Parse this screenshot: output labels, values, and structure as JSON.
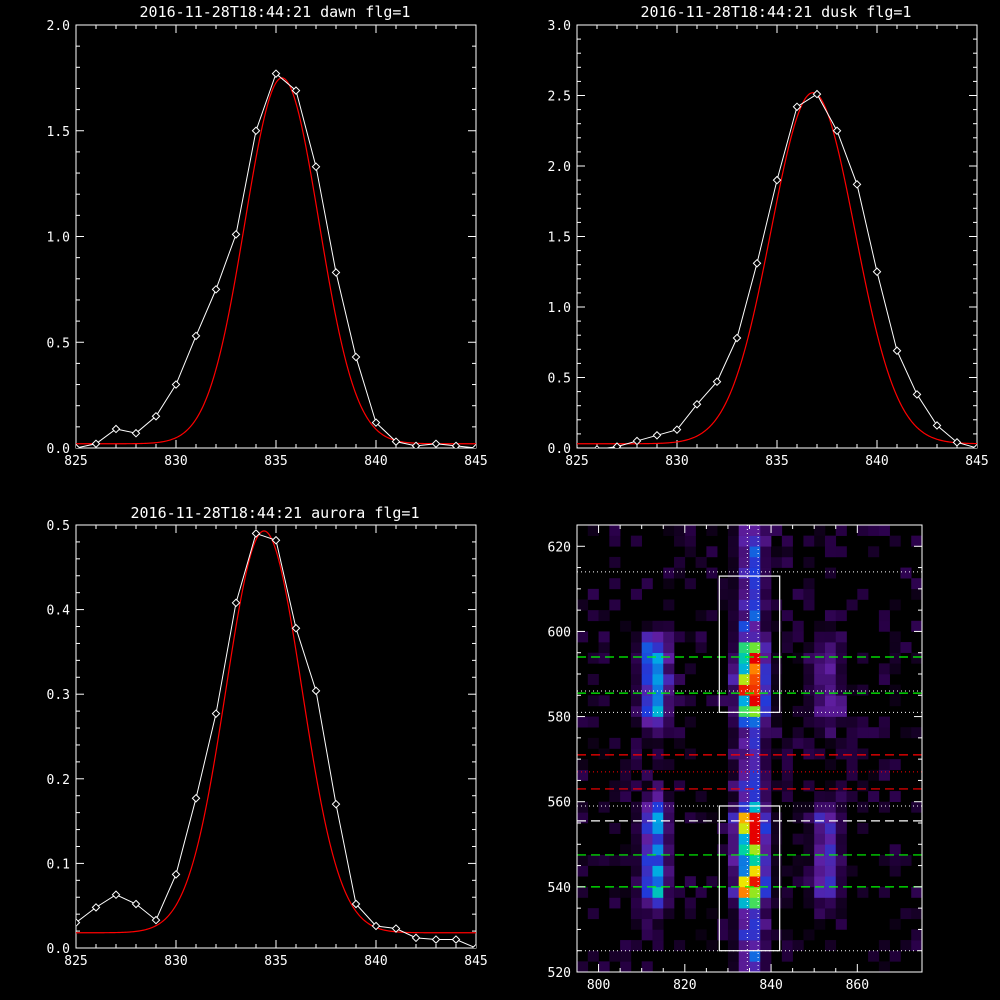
{
  "chart_data": [
    {
      "type": "line",
      "title": "2016-11-28T18:44:21 dawn flg=1",
      "xlim": [
        825,
        845
      ],
      "ylim": [
        0,
        2.0
      ],
      "xticks": [
        "825",
        "830",
        "835",
        "840",
        "845"
      ],
      "yticks": [
        "0.0",
        "0.5",
        "1.0",
        "1.5",
        "2.0"
      ],
      "series": [
        {
          "color": "#ffffff",
          "marker": "diamond",
          "x": [
            825,
            826,
            827,
            828,
            829,
            830,
            831,
            832,
            833,
            834,
            835,
            836,
            837,
            838,
            839,
            840,
            841,
            842,
            843,
            844,
            845
          ],
          "y": [
            0.0,
            0.02,
            0.09,
            0.07,
            0.15,
            0.3,
            0.53,
            0.75,
            1.01,
            1.5,
            1.77,
            1.69,
            1.33,
            0.83,
            0.43,
            0.12,
            0.03,
            0.01,
            0.02,
            0.01,
            0.0
          ]
        },
        {
          "color": "#ff0000",
          "fit": {
            "amplitude": 1.73,
            "center": 835.3,
            "sigma": 1.85,
            "offset": 0.02
          }
        }
      ]
    },
    {
      "type": "line",
      "title": "2016-11-28T18:44:21 dusk flg=1",
      "xlim": [
        825,
        845
      ],
      "ylim": [
        0,
        3.0
      ],
      "xticks": [
        "825",
        "830",
        "835",
        "840",
        "845"
      ],
      "yticks": [
        "0.0",
        "0.5",
        "1.0",
        "1.5",
        "2.0",
        "2.5",
        "3.0"
      ],
      "series": [
        {
          "color": "#ffffff",
          "marker": "diamond",
          "x": [
            825,
            826,
            827,
            828,
            829,
            830,
            831,
            832,
            833,
            834,
            835,
            836,
            837,
            838,
            839,
            840,
            841,
            842,
            843,
            844,
            845
          ],
          "y": [
            -0.02,
            -0.01,
            0.01,
            0.05,
            0.09,
            0.13,
            0.31,
            0.47,
            0.78,
            1.31,
            1.9,
            2.42,
            2.51,
            2.25,
            1.87,
            1.25,
            0.69,
            0.38,
            0.16,
            0.04,
            0.0
          ]
        },
        {
          "color": "#ff0000",
          "fit": {
            "amplitude": 2.49,
            "center": 836.8,
            "sigma": 2.1,
            "offset": 0.03
          }
        }
      ]
    },
    {
      "type": "line",
      "title": "2016-11-28T18:44:21 aurora flg=1",
      "xlim": [
        825,
        845
      ],
      "ylim": [
        0,
        0.5
      ],
      "xticks": [
        "825",
        "830",
        "835",
        "840",
        "845"
      ],
      "yticks": [
        "0.0",
        "0.1",
        "0.2",
        "0.3",
        "0.4",
        "0.5"
      ],
      "series": [
        {
          "color": "#ffffff",
          "marker": "diamond",
          "x": [
            825,
            826,
            827,
            828,
            829,
            830,
            831,
            832,
            833,
            834,
            835,
            836,
            837,
            838,
            839,
            840,
            841,
            842,
            843,
            844,
            845
          ],
          "y": [
            0.03,
            0.048,
            0.063,
            0.052,
            0.033,
            0.087,
            0.177,
            0.277,
            0.408,
            0.49,
            0.482,
            0.378,
            0.304,
            0.17,
            0.052,
            0.026,
            0.023,
            0.012,
            0.01,
            0.01,
            0.0
          ]
        },
        {
          "color": "#ff0000",
          "fit": {
            "amplitude": 0.475,
            "center": 834.4,
            "sigma": 1.9,
            "offset": 0.018
          }
        }
      ]
    },
    {
      "type": "heatmap",
      "xlim": [
        795,
        875
      ],
      "ylim": [
        520,
        625
      ],
      "xticks": [
        "800",
        "820",
        "840",
        "860"
      ],
      "yticks": [
        "520",
        "540",
        "560",
        "580",
        "600",
        "620"
      ],
      "colormap": "rainbow",
      "emission_columns": [
        {
          "x": 813,
          "relative_intensity": 0.5
        },
        {
          "x": 835.5,
          "relative_intensity": 1.0
        },
        {
          "x": 853,
          "relative_intensity": 0.3
        }
      ],
      "emission_rows": [
        {
          "y_min": 578,
          "y_max": 598
        },
        {
          "y_min": 533,
          "y_max": 562
        }
      ],
      "boxes": [
        {
          "x": [
            828,
            842
          ],
          "y": [
            581,
            613
          ],
          "color": "#ffffff"
        },
        {
          "x": [
            828,
            842
          ],
          "y": [
            525,
            559
          ],
          "color": "#ffffff"
        }
      ],
      "dashed_lines": [
        {
          "y": 594,
          "color": "#00ff00"
        },
        {
          "y": 585.5,
          "color": "#00ff00"
        },
        {
          "y": 571,
          "color": "#ff0000"
        },
        {
          "y": 563,
          "color": "#ff0000"
        },
        {
          "y": 555.5,
          "color": "#ffffff"
        },
        {
          "y": 547.5,
          "color": "#00ff00"
        },
        {
          "y": 540,
          "color": "#00ff00"
        }
      ],
      "dotted_lines": [
        {
          "y": 614,
          "color": "#ffffff"
        },
        {
          "y": 586,
          "color": "#ffffff"
        },
        {
          "y": 581,
          "color": "#ffffff"
        },
        {
          "y": 567,
          "color": "#ff0000"
        },
        {
          "y": 559,
          "color": "#ffffff"
        },
        {
          "y": 525,
          "color": "#ffffff"
        },
        {
          "x": 834.5,
          "color": "#ffffff"
        },
        {
          "x": 837,
          "color": "#ffffff"
        }
      ]
    }
  ]
}
